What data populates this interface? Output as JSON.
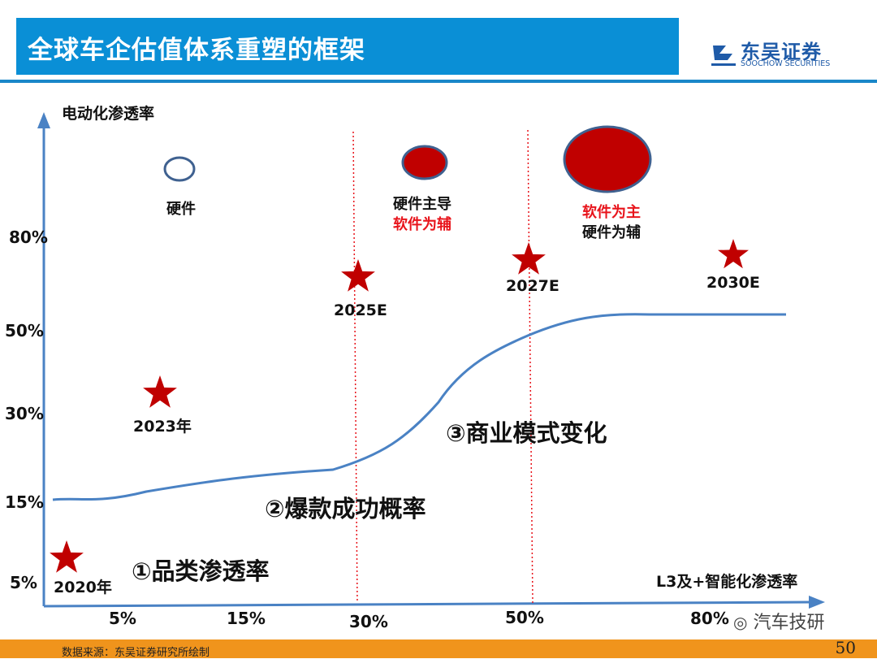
{
  "header": {
    "title": "全球车企估值体系重塑的框架",
    "logo_name": "东吴证券",
    "logo_en": "SOOCHOW SECURITIES"
  },
  "axes": {
    "y_title": "电动化渗透率",
    "x_title": "L3及+智能化渗透率",
    "y_ticks": [
      "80%",
      "50%",
      "30%",
      "15%",
      "5%"
    ],
    "x_ticks": [
      "5%",
      "15%",
      "30%",
      "50%",
      "80%"
    ]
  },
  "markers": {
    "m2020": "2020年",
    "m2023": "2023年",
    "m2025": "2025E",
    "m2027": "2027E",
    "m2030": "2030E"
  },
  "stages": {
    "s1": "①品类渗透率",
    "s2": "②爆款成功概率",
    "s3": "③商业模式变化"
  },
  "bubbles": {
    "b1": "硬件",
    "b2_line1": "硬件主导",
    "b2_line2": "软件为辅",
    "b3_line1": "软件为主",
    "b3_line2": "硬件为辅"
  },
  "footer": {
    "source": "数据来源：东吴证券研究所绘制",
    "page": "50"
  },
  "watermark": "汽车技研",
  "colors": {
    "title_bg": "#0a8fd6",
    "axis": "#4a82c4",
    "curve": "#4a82c4",
    "star": "#c00000",
    "bubble_fill": "#c00000",
    "bubble_stroke": "#3f6190",
    "divider": "#e8141b",
    "footer": "#f0941c"
  }
}
